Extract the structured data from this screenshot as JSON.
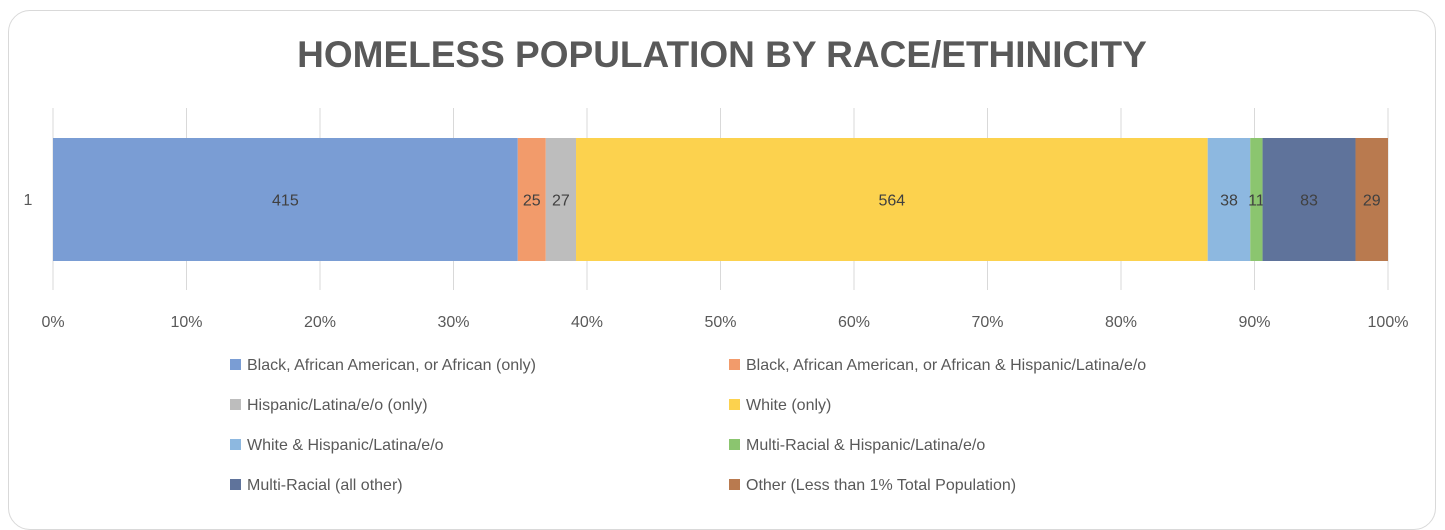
{
  "chart_data": {
    "type": "bar",
    "orientation": "horizontal",
    "stacking": "percent",
    "title": "HOMELESS POPULATION BY RACE/ETHINICITY",
    "categories": [
      "1"
    ],
    "xlim": [
      0,
      100
    ],
    "x_ticks": [
      "0%",
      "10%",
      "20%",
      "30%",
      "40%",
      "50%",
      "60%",
      "70%",
      "80%",
      "90%",
      "100%"
    ],
    "grid": true,
    "legend_position": "bottom",
    "series": [
      {
        "name": "Black, African American, or African (only)",
        "values": [
          415
        ],
        "color": "#7a9dd4"
      },
      {
        "name": "Black, African American, or African & Hispanic/Latina/e/o",
        "values": [
          25
        ],
        "color": "#f29b6b"
      },
      {
        "name": "Hispanic/Latina/e/o (only)",
        "values": [
          27
        ],
        "color": "#bdbdbd"
      },
      {
        "name": "White (only)",
        "values": [
          564
        ],
        "color": "#fcd24e"
      },
      {
        "name": "White & Hispanic/Latina/e/o",
        "values": [
          38
        ],
        "color": "#8db8e0"
      },
      {
        "name": "Multi-Racial & Hispanic/Latina/e/o",
        "values": [
          11
        ],
        "color": "#8bc56f"
      },
      {
        "name": "Multi-Racial (all other)",
        "values": [
          83
        ],
        "color": "#5f739b"
      },
      {
        "name": "Other (Less than 1% Total Population)",
        "values": [
          29
        ],
        "color": "#b97a4f"
      }
    ]
  }
}
